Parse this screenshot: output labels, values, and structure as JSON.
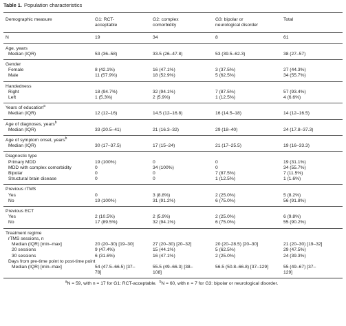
{
  "title": {
    "label": "Table 1.",
    "text": "Population characteristics"
  },
  "table": {
    "columns": [
      "Demographic measure",
      "G1: RCT-acceptable",
      "G2: complex comorbidity",
      "G3: bipolar or neurological disorder",
      "Total"
    ],
    "sections": [
      {
        "heading": "N",
        "cells": [
          "19",
          "34",
          "8",
          "61"
        ]
      },
      {
        "heading": "Age, years",
        "rows": [
          {
            "label": "Median (IQR)",
            "cells": [
              "53 (36–58)",
              "33.5 (26–47.8)",
              "53 (39.5–62.3)",
              "38 (27–57)"
            ]
          }
        ]
      },
      {
        "heading": "Gender",
        "rows": [
          {
            "label": "Female",
            "cells": [
              "8 (42.1%)",
              "16 (47.1%)",
              "3 (37.5%)",
              "27 (44.3%)"
            ]
          },
          {
            "label": "Male",
            "cells": [
              "11 (57.9%)",
              "18 (52.9%)",
              "5 (62.5%)",
              "34 (55.7%)"
            ]
          }
        ]
      },
      {
        "heading": "Handedness",
        "rows": [
          {
            "label": "Right",
            "cells": [
              "18 (94.7%)",
              "32 (94.1%)",
              "7 (87.5%)",
              "57 (93.4%)"
            ]
          },
          {
            "label": "Left",
            "cells": [
              "1 (5.3%)",
              "2 (5.9%)",
              "1 (12.5%)",
              "4 (6.6%)"
            ]
          }
        ]
      },
      {
        "heading": "Years of education",
        "note": "a",
        "rows": [
          {
            "label": "Median (IQR)",
            "cells": [
              "12 (12–16)",
              "14.5 (12–16.8)",
              "16 (14.5–18)",
              "14 (12–16.5)"
            ]
          }
        ]
      },
      {
        "heading": "Age of diagnoses, years",
        "note": "b",
        "rows": [
          {
            "label": "Median (IQR)",
            "cells": [
              "33 (20.5–41)",
              "21 (16.3–32)",
              "29 (18–40)",
              "24 (17.8–37.3)"
            ]
          }
        ]
      },
      {
        "heading": "Age of symptom onset, years",
        "note": "b",
        "rows": [
          {
            "label": "Median (IQR)",
            "cells": [
              "30 (17–37.5)",
              "17 (15–24)",
              "21 (17–25.5)",
              "19 (16–33.3)"
            ]
          }
        ]
      },
      {
        "heading": "Diagnostic type",
        "rows": [
          {
            "label": "Primary MDD",
            "cells": [
              "19 (100%)",
              "0",
              "0",
              "19 (31.1%)"
            ]
          },
          {
            "label": "MDD with complex comorbidity",
            "cells": [
              "0",
              "34 (100%)",
              "0",
              "34 (55.7%)"
            ]
          },
          {
            "label": "Bipolar",
            "cells": [
              "0",
              "0",
              "7 (87.5%)",
              "7 (11.5%)"
            ]
          },
          {
            "label": "Structural brain disease",
            "cells": [
              "0",
              "0",
              "1 (12.5%)",
              "1 (1.6%)"
            ]
          }
        ]
      },
      {
        "heading": "Previous rTMS",
        "rows": [
          {
            "label": "Yes",
            "cells": [
              "0",
              "3 (8.8%)",
              "2 (25.0%)",
              "5 (8.2%)"
            ]
          },
          {
            "label": "No",
            "cells": [
              "19 (100%)",
              "31 (91.2%)",
              "6 (75.0%)",
              "56 (91.8%)"
            ]
          }
        ]
      },
      {
        "heading": "Previous ECT",
        "rows": [
          {
            "label": "Yes",
            "cells": [
              "2 (10.5%)",
              "2 (5.9%)",
              "2 (25.0%)",
              "6 (9.8%)"
            ]
          },
          {
            "label": "No",
            "cells": [
              "17 (89.5%)",
              "32 (94.1%)",
              "6 (75.0%)",
              "55 (90.2%)"
            ]
          }
        ]
      },
      {
        "heading": "Treatment regime",
        "rows": [
          {
            "label": "rTMS sessions, n"
          },
          {
            "label": "Median (IQR) [min–max]",
            "cells": [
              "20 (20–30) [19–30]",
              "27 (20–30) [20–32]",
              "20 (20–28.5) [20–30]",
              "21 (20–30) [19–32]"
            ]
          },
          {
            "label": "20 sessions",
            "cells": [
              "9 (47.4%)",
              "15 (44.1%)",
              "5 (62.5%)",
              "29 (47.5%)"
            ]
          },
          {
            "label": "30 sessions",
            "cells": [
              "6 (31.6%)",
              "16 (47.1%)",
              "2 (25.0%)",
              "24 (39.3%)"
            ]
          },
          {
            "label": "Days from pre-time point to post-time point"
          },
          {
            "label": "Median (IQR) [min–max]",
            "cells": [
              "54 (47.5–66.5) [37–78]",
              "55.5 (49–66.3) [38–108]",
              "56.5 (50.8–66.8) [37–129]",
              "55 (49–67) [37–129]"
            ]
          }
        ]
      }
    ]
  },
  "footnotes": [
    {
      "mark": "a",
      "text": "N = 59, with n = 17 for G1: RCT-acceptable."
    },
    {
      "mark": "b",
      "text": "N = 60, with n = 7 for G3: bipolar or neurological disorder."
    }
  ]
}
